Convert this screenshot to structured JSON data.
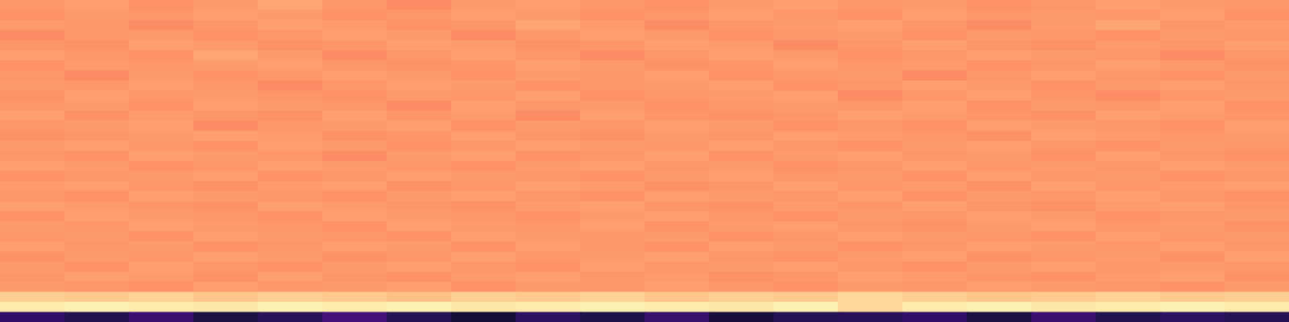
{
  "chart_data": {
    "type": "heatmap",
    "color": "magma",
    "zlim": [
      0,
      1
    ],
    "tick_labels": false,
    "cells": [
      [
        0.78,
        0.8,
        0.77,
        0.79,
        0.81,
        0.78,
        0.76,
        0.79,
        0.8,
        0.78,
        0.77,
        0.79,
        0.8,
        0.78,
        0.79,
        0.77,
        0.78,
        0.8,
        0.79,
        0.78
      ],
      [
        0.77,
        0.79,
        0.78,
        0.8,
        0.79,
        0.77,
        0.78,
        0.8,
        0.79,
        0.77,
        0.78,
        0.8,
        0.78,
        0.77,
        0.8,
        0.78,
        0.79,
        0.78,
        0.8,
        0.77
      ],
      [
        0.79,
        0.78,
        0.76,
        0.78,
        0.8,
        0.79,
        0.77,
        0.78,
        0.81,
        0.79,
        0.76,
        0.78,
        0.79,
        0.8,
        0.78,
        0.76,
        0.79,
        0.81,
        0.78,
        0.79
      ],
      [
        0.76,
        0.78,
        0.79,
        0.77,
        0.78,
        0.8,
        0.79,
        0.76,
        0.78,
        0.8,
        0.79,
        0.77,
        0.78,
        0.79,
        0.77,
        0.79,
        0.78,
        0.77,
        0.79,
        0.78
      ],
      [
        0.78,
        0.77,
        0.8,
        0.79,
        0.77,
        0.78,
        0.8,
        0.79,
        0.77,
        0.78,
        0.8,
        0.79,
        0.76,
        0.78,
        0.8,
        0.78,
        0.77,
        0.79,
        0.78,
        0.8
      ],
      [
        0.8,
        0.78,
        0.77,
        0.81,
        0.79,
        0.76,
        0.78,
        0.8,
        0.78,
        0.76,
        0.78,
        0.8,
        0.79,
        0.77,
        0.78,
        0.8,
        0.79,
        0.78,
        0.76,
        0.78
      ],
      [
        0.77,
        0.79,
        0.78,
        0.79,
        0.8,
        0.78,
        0.77,
        0.78,
        0.8,
        0.79,
        0.77,
        0.78,
        0.8,
        0.78,
        0.79,
        0.77,
        0.78,
        0.8,
        0.79,
        0.77
      ],
      [
        0.78,
        0.76,
        0.79,
        0.77,
        0.78,
        0.8,
        0.79,
        0.77,
        0.79,
        0.78,
        0.8,
        0.77,
        0.78,
        0.79,
        0.76,
        0.78,
        0.8,
        0.78,
        0.77,
        0.79
      ],
      [
        0.79,
        0.78,
        0.8,
        0.78,
        0.76,
        0.78,
        0.8,
        0.79,
        0.77,
        0.78,
        0.79,
        0.8,
        0.77,
        0.78,
        0.8,
        0.79,
        0.77,
        0.79,
        0.8,
        0.78
      ],
      [
        0.77,
        0.8,
        0.78,
        0.79,
        0.78,
        0.77,
        0.79,
        0.78,
        0.8,
        0.77,
        0.78,
        0.79,
        0.8,
        0.76,
        0.78,
        0.8,
        0.78,
        0.76,
        0.78,
        0.79
      ],
      [
        0.78,
        0.79,
        0.77,
        0.8,
        0.79,
        0.78,
        0.76,
        0.8,
        0.78,
        0.79,
        0.77,
        0.78,
        0.79,
        0.78,
        0.8,
        0.77,
        0.79,
        0.78,
        0.8,
        0.77
      ],
      [
        0.8,
        0.77,
        0.79,
        0.78,
        0.77,
        0.8,
        0.78,
        0.79,
        0.76,
        0.8,
        0.78,
        0.77,
        0.78,
        0.8,
        0.79,
        0.78,
        0.77,
        0.8,
        0.79,
        0.78
      ],
      [
        0.78,
        0.79,
        0.8,
        0.76,
        0.78,
        0.79,
        0.8,
        0.77,
        0.79,
        0.78,
        0.8,
        0.79,
        0.77,
        0.78,
        0.77,
        0.8,
        0.79,
        0.78,
        0.77,
        0.8
      ],
      [
        0.77,
        0.78,
        0.79,
        0.8,
        0.79,
        0.77,
        0.78,
        0.8,
        0.78,
        0.77,
        0.79,
        0.78,
        0.8,
        0.79,
        0.78,
        0.77,
        0.8,
        0.79,
        0.78,
        0.79
      ],
      [
        0.79,
        0.8,
        0.78,
        0.77,
        0.8,
        0.79,
        0.77,
        0.78,
        0.8,
        0.79,
        0.78,
        0.8,
        0.78,
        0.77,
        0.79,
        0.8,
        0.78,
        0.77,
        0.79,
        0.78
      ],
      [
        0.78,
        0.77,
        0.8,
        0.79,
        0.78,
        0.76,
        0.79,
        0.8,
        0.77,
        0.78,
        0.8,
        0.77,
        0.79,
        0.8,
        0.78,
        0.79,
        0.77,
        0.8,
        0.78,
        0.77
      ],
      [
        0.8,
        0.79,
        0.77,
        0.78,
        0.8,
        0.79,
        0.78,
        0.77,
        0.79,
        0.8,
        0.78,
        0.79,
        0.77,
        0.78,
        0.8,
        0.78,
        0.79,
        0.78,
        0.8,
        0.79
      ],
      [
        0.77,
        0.78,
        0.79,
        0.8,
        0.77,
        0.78,
        0.8,
        0.79,
        0.78,
        0.77,
        0.79,
        0.8,
        0.78,
        0.79,
        0.77,
        0.8,
        0.78,
        0.79,
        0.77,
        0.78
      ],
      [
        0.79,
        0.8,
        0.78,
        0.77,
        0.79,
        0.8,
        0.77,
        0.78,
        0.8,
        0.79,
        0.77,
        0.78,
        0.8,
        0.78,
        0.79,
        0.77,
        0.8,
        0.78,
        0.79,
        0.8
      ],
      [
        0.78,
        0.77,
        0.8,
        0.79,
        0.78,
        0.77,
        0.79,
        0.8,
        0.78,
        0.77,
        0.8,
        0.79,
        0.78,
        0.8,
        0.77,
        0.79,
        0.78,
        0.8,
        0.78,
        0.77
      ],
      [
        0.8,
        0.79,
        0.78,
        0.77,
        0.8,
        0.79,
        0.78,
        0.77,
        0.79,
        0.8,
        0.78,
        0.77,
        0.79,
        0.78,
        0.8,
        0.78,
        0.77,
        0.79,
        0.8,
        0.78
      ],
      [
        0.77,
        0.8,
        0.79,
        0.78,
        0.77,
        0.8,
        0.79,
        0.78,
        0.77,
        0.79,
        0.8,
        0.78,
        0.77,
        0.79,
        0.78,
        0.8,
        0.79,
        0.77,
        0.78,
        0.79
      ],
      [
        0.79,
        0.78,
        0.8,
        0.79,
        0.78,
        0.77,
        0.8,
        0.79,
        0.78,
        0.8,
        0.77,
        0.79,
        0.8,
        0.78,
        0.77,
        0.79,
        0.8,
        0.78,
        0.79,
        0.77
      ],
      [
        0.78,
        0.79,
        0.77,
        0.8,
        0.79,
        0.78,
        0.77,
        0.8,
        0.79,
        0.78,
        0.79,
        0.77,
        0.78,
        0.8,
        0.79,
        0.78,
        0.77,
        0.8,
        0.78,
        0.79
      ],
      [
        0.8,
        0.78,
        0.79,
        0.77,
        0.78,
        0.8,
        0.79,
        0.77,
        0.8,
        0.78,
        0.77,
        0.8,
        0.79,
        0.77,
        0.78,
        0.8,
        0.79,
        0.78,
        0.8,
        0.78
      ],
      [
        0.77,
        0.79,
        0.78,
        0.8,
        0.79,
        0.77,
        0.78,
        0.8,
        0.78,
        0.79,
        0.8,
        0.78,
        0.77,
        0.79,
        0.8,
        0.77,
        0.78,
        0.79,
        0.77,
        0.8
      ],
      [
        0.79,
        0.77,
        0.8,
        0.78,
        0.77,
        0.79,
        0.8,
        0.78,
        0.77,
        0.8,
        0.78,
        0.79,
        0.8,
        0.78,
        0.77,
        0.79,
        0.8,
        0.78,
        0.79,
        0.78
      ],
      [
        0.78,
        0.8,
        0.79,
        0.77,
        0.8,
        0.78,
        0.77,
        0.79,
        0.8,
        0.78,
        0.79,
        0.77,
        0.78,
        0.8,
        0.79,
        0.78,
        0.77,
        0.79,
        0.8,
        0.77
      ],
      [
        0.79,
        0.78,
        0.77,
        0.8,
        0.78,
        0.79,
        0.8,
        0.77,
        0.79,
        0.78,
        0.8,
        0.78,
        0.77,
        0.79,
        0.78,
        0.8,
        0.79,
        0.78,
        0.77,
        0.79
      ],
      [
        0.9,
        0.89,
        0.91,
        0.88,
        0.9,
        0.89,
        0.87,
        0.9,
        0.89,
        0.91,
        0.88,
        0.9,
        0.89,
        0.92,
        0.9,
        0.88,
        0.89,
        0.91,
        0.89,
        0.9
      ],
      [
        0.96,
        0.97,
        0.96,
        0.95,
        0.97,
        0.96,
        0.97,
        0.95,
        0.96,
        0.97,
        0.96,
        0.95,
        0.97,
        0.92,
        0.96,
        0.97,
        0.95,
        0.96,
        0.97,
        0.96
      ],
      [
        0.18,
        0.14,
        0.2,
        0.12,
        0.16,
        0.22,
        0.15,
        0.1,
        0.17,
        0.13,
        0.19,
        0.11,
        0.15,
        0.16,
        0.18,
        0.12,
        0.2,
        0.14,
        0.17,
        0.15
      ]
    ]
  }
}
